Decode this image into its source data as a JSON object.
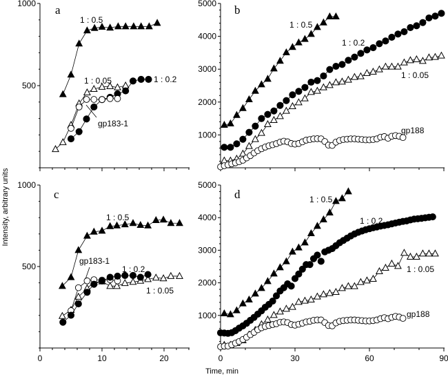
{
  "chart_data": [
    {
      "panel": "a",
      "type": "line",
      "xlim": [
        0,
        24
      ],
      "ylim": [
        0,
        1000
      ],
      "xticks": [
        0,
        10,
        20
      ],
      "show_xtick_labels": false,
      "yticks": [
        500,
        1000
      ],
      "ytick_labels": [
        "500",
        "1000"
      ],
      "series": [
        {
          "name": "1 : 0.5",
          "marker": "filled-triangle",
          "x": [
            3.7,
            5.0,
            6.3,
            7.6,
            8.8,
            10.0,
            11.3,
            12.6,
            13.8,
            15.1,
            16.3,
            17.6,
            18.9
          ],
          "y": [
            447,
            566,
            755,
            835,
            850,
            857,
            852,
            860,
            860,
            860,
            860,
            860,
            881
          ]
        },
        {
          "name": "1 : 0.05",
          "marker": "open-triangle",
          "x": [
            2.5,
            3.7,
            5.0,
            6.3,
            7.6,
            8.7,
            10.0,
            11.3,
            12.5,
            13.8
          ],
          "y": [
            113,
            155,
            260,
            391,
            458,
            479,
            492,
            496,
            489,
            500
          ]
        },
        {
          "name": "1 : 0.2",
          "marker": "filled-circle",
          "x": [
            5.0,
            6.3,
            7.5,
            8.7,
            10.0,
            11.3,
            12.5,
            13.8,
            15.0,
            16.3,
            17.5
          ],
          "y": [
            176,
            220,
            297,
            370,
            415,
            429,
            450,
            468,
            528,
            538,
            538
          ]
        },
        {
          "name": "gp183-1",
          "marker": "open-circle",
          "x": [
            5.0,
            6.3,
            7.5,
            8.7,
            10.0,
            11.3,
            12.5
          ],
          "y": [
            240,
            370,
            416,
            416,
            415,
            421,
            421
          ]
        }
      ]
    },
    {
      "panel": "b",
      "type": "line",
      "xlim": [
        0,
        90
      ],
      "ylim": [
        0,
        5000
      ],
      "xticks": [
        0,
        30,
        60,
        90
      ],
      "show_xtick_labels": false,
      "yticks": [
        1000,
        2000,
        3000,
        4000,
        5000
      ],
      "ytick_labels": [
        "1000",
        "2000",
        "3000",
        "4000",
        "5000"
      ],
      "series": [
        {
          "name": "1 : 0.5",
          "marker": "filled-triangle",
          "x": [
            1.5,
            4,
            6.5,
            9,
            11.5,
            14,
            16.5,
            19,
            21.5,
            24,
            26.5,
            29,
            31.5,
            34,
            36.5,
            39,
            41.5,
            44,
            46.5
          ],
          "y": [
            1303,
            1345,
            1603,
            1813,
            2080,
            2338,
            2535,
            2703,
            3018,
            3250,
            3508,
            3670,
            3810,
            3915,
            4069,
            4279,
            4418,
            4600,
            4600
          ]
        },
        {
          "name": "1 : 0.2",
          "marker": "filled-circle",
          "x": [
            1.5,
            4,
            6.5,
            9,
            11.5,
            14,
            16.5,
            19,
            21.5,
            24,
            26.5,
            29,
            31.5,
            34,
            36.5,
            39,
            41.5,
            44,
            46.5,
            49,
            51.5,
            54,
            56.5,
            59,
            61.5,
            64,
            66.5,
            69,
            71.5,
            74,
            76.5,
            79,
            81.5,
            84,
            86.5,
            89
          ],
          "y": [
            623,
            623,
            728,
            868,
            1078,
            1268,
            1499,
            1625,
            1730,
            1898,
            2045,
            2220,
            2325,
            2444,
            2605,
            2654,
            2794,
            2990,
            3088,
            3144,
            3270,
            3368,
            3480,
            3585,
            3655,
            3775,
            3858,
            3971,
            4069,
            4139,
            4265,
            4321,
            4419,
            4559,
            4615,
            4699
          ]
        },
        {
          "name": "1 : 0.05",
          "marker": "open-triangle",
          "x": [
            1.5,
            4,
            6.5,
            9,
            11.5,
            14,
            16.5,
            19,
            21.5,
            24,
            26.5,
            29,
            31.5,
            34,
            36.5,
            39,
            41.5,
            44,
            46.5,
            49,
            51.5,
            54,
            56.5,
            59,
            61.5,
            64,
            66.5,
            69,
            71.5,
            74,
            76.5,
            79,
            81.5,
            84,
            86.5,
            89
          ],
          "y": [
            217,
            217,
            273,
            427,
            658,
            868,
            1057,
            1324,
            1450,
            1569,
            1730,
            1870,
            1989,
            2108,
            2304,
            2339,
            2444,
            2514,
            2598,
            2619,
            2675,
            2759,
            2780,
            2878,
            2920,
            2990,
            3074,
            3074,
            3074,
            3200,
            3270,
            3298,
            3249,
            3354,
            3368,
            3410
          ]
        },
        {
          "name": "gp188",
          "marker": "open-circle",
          "x": [
            0,
            1.5,
            3,
            4.5,
            6,
            7.5,
            9,
            10.5,
            12,
            13.5,
            15,
            16.5,
            18,
            19.5,
            21,
            22.5,
            24,
            25.5,
            27,
            28.5,
            30,
            31.5,
            33,
            34.5,
            36,
            37.5,
            39,
            40.5,
            42,
            43.5,
            45,
            46.5,
            48,
            49.5,
            51,
            52.5,
            54,
            55.5,
            57,
            58.5,
            60,
            61.5,
            63,
            64.5,
            66,
            67.5,
            69,
            70.5,
            72,
            73.5
          ],
          "y": [
            30,
            63,
            90,
            120,
            150,
            185,
            230,
            300,
            370,
            450,
            520,
            580,
            630,
            670,
            700,
            735,
            780,
            810,
            790,
            740,
            720,
            740,
            790,
            840,
            860,
            880,
            885,
            880,
            800,
            690,
            680,
            780,
            830,
            860,
            870,
            880,
            880,
            870,
            860,
            850,
            850,
            860,
            880,
            930,
            950,
            900,
            960,
            980,
            960,
            920
          ]
        }
      ]
    },
    {
      "panel": "c",
      "type": "line",
      "xlim": [
        0,
        24
      ],
      "ylim": [
        0,
        1000
      ],
      "xticks": [
        0,
        10,
        20
      ],
      "show_xtick_labels": true,
      "xtick_labels": [
        "0",
        "10",
        "20"
      ],
      "yticks": [
        500,
        1000
      ],
      "ytick_labels": [
        "500",
        "1000"
      ],
      "series": [
        {
          "name": "1 : 0.5",
          "marker": "filled-triangle",
          "x": [
            3.6,
            5.0,
            6.2,
            7.6,
            8.7,
            10.0,
            11.3,
            12.4,
            13.7,
            15.0,
            16.2,
            17.4,
            18.7,
            19.9,
            21.1,
            22.5
          ],
          "y": [
            380,
            434,
            600,
            688,
            713,
            719,
            747,
            751,
            758,
            766,
            754,
            751,
            784,
            787,
            766,
            766
          ]
        },
        {
          "name": "1 : 0.05",
          "marker": "open-triangle",
          "x": [
            3.6,
            5.0,
            6.2,
            7.6,
            8.7,
            10.0,
            11.3,
            12.4,
            13.7,
            15.0,
            16.2,
            17.4,
            18.7,
            19.9,
            21.1,
            22.5
          ],
          "y": [
            196,
            233,
            314,
            366,
            403,
            408,
            380,
            380,
            398,
            405,
            412,
            422,
            431,
            427,
            441,
            441
          ]
        },
        {
          "name": "gp183-1",
          "marker": "open-circle",
          "x": [
            5.0,
            6.2,
            7.6,
            8.7,
            10.0,
            11.3,
            12.5
          ],
          "y": [
            229,
            370,
            412,
            419,
            417,
            419,
            412
          ]
        },
        {
          "name": "1 : 0.2",
          "marker": "filled-circle",
          "x": [
            3.7,
            5.0,
            6.2,
            7.6,
            8.7,
            10.0,
            11.3,
            12.5,
            13.7,
            15.0,
            16.2,
            17.4
          ],
          "y": [
            158,
            201,
            271,
            342,
            391,
            412,
            434,
            441,
            445,
            445,
            434,
            451
          ]
        }
      ]
    },
    {
      "panel": "d",
      "type": "line",
      "xlim": [
        0,
        90
      ],
      "ylim": [
        0,
        5000
      ],
      "xticks": [
        0,
        30,
        60,
        90
      ],
      "show_xtick_labels": true,
      "xtick_labels": [
        "0",
        "30",
        "60",
        "90"
      ],
      "yticks": [
        1000,
        2000,
        3000,
        4000,
        5000
      ],
      "ytick_labels": [
        "1000",
        "2000",
        "3000",
        "4000",
        "5000"
      ],
      "series": [
        {
          "name": "1 : 0.5",
          "marker": "filled-triangle",
          "x": [
            1.5,
            4,
            6.5,
            9,
            11.5,
            14,
            16.5,
            19,
            21.5,
            24,
            26.5,
            29,
            31.5,
            34,
            36.5,
            39,
            41.5,
            44,
            46.5,
            49,
            51.5
          ],
          "y": [
            1059,
            1031,
            1151,
            1363,
            1483,
            1667,
            1836,
            2048,
            2281,
            2472,
            2655,
            2952,
            3079,
            3234,
            3517,
            3743,
            3941,
            4153,
            4506,
            4590,
            4802
          ]
        },
        {
          "name": "1 : 0.2",
          "marker": "filled-circle",
          "x": [
            0,
            1.5,
            3,
            4.5,
            6,
            7.5,
            9,
            10.5,
            12,
            13.5,
            15,
            16.5,
            18,
            19.5,
            21,
            22.5,
            24,
            25.5,
            27,
            28.5,
            30,
            31.5,
            33,
            34.5,
            36,
            37.5,
            39,
            40.5,
            42,
            43.5,
            45,
            46.5,
            48,
            49.5,
            51,
            52.5,
            54,
            55.5,
            57,
            58.5,
            60,
            61.5,
            63,
            64.5,
            66,
            67.5,
            69,
            70.5,
            72,
            73.5,
            75,
            76.5,
            78,
            79.5,
            81,
            82.5,
            84,
            85.5
          ],
          "y": [
            466,
            460,
            450,
            470,
            530,
            610,
            680,
            760,
            850,
            940,
            1040,
            1140,
            1250,
            1340,
            1440,
            1600,
            1750,
            1850,
            1970,
            1900,
            2130,
            2270,
            2420,
            2560,
            2560,
            2740,
            2850,
            2660,
            2950,
            3000,
            3050,
            3140,
            3230,
            3300,
            3370,
            3440,
            3500,
            3550,
            3590,
            3630,
            3660,
            3690,
            3715,
            3740,
            3760,
            3780,
            3810,
            3835,
            3860,
            3885,
            3900,
            3930,
            3955,
            3965,
            3980,
            3995,
            4010,
            4025
          ]
        },
        {
          "name": "1 : 0.05",
          "marker": "open-triangle",
          "x": [
            1.5,
            4,
            6.5,
            9,
            11.5,
            14,
            16.5,
            19,
            21.5,
            24,
            26.5,
            29,
            31.5,
            34,
            36.5,
            39,
            41.5,
            44,
            46.5,
            49,
            51.5,
            54,
            56.5,
            59,
            61.5,
            64,
            66.5,
            69,
            71.5,
            74,
            76.5,
            79,
            81.5,
            84,
            86.5
          ],
          "y": [
            92,
            92,
            148,
            233,
            410,
            551,
            727,
            869,
            1010,
            1116,
            1201,
            1257,
            1412,
            1448,
            1483,
            1575,
            1645,
            1681,
            1716,
            1836,
            1893,
            1893,
            2020,
            2069,
            2119,
            2352,
            2458,
            2585,
            2514,
            2917,
            2797,
            2797,
            2895,
            2895,
            2895
          ]
        },
        {
          "name": "gp188",
          "marker": "open-circle",
          "x": [
            0,
            1.5,
            3,
            4.5,
            6,
            7.5,
            9,
            10.5,
            12,
            13.5,
            15,
            16.5,
            18,
            19.5,
            21,
            22.5,
            24,
            25.5,
            27,
            28.5,
            30,
            31.5,
            33,
            34.5,
            36,
            37.5,
            39,
            40.5,
            42,
            43.5,
            45,
            46.5,
            48,
            49.5,
            51,
            52.5,
            54,
            55.5,
            57,
            58.5,
            60,
            61.5,
            63,
            64.5,
            66,
            67.5,
            69,
            70.5,
            72,
            73.5
          ],
          "y": [
            40,
            56,
            60,
            100,
            150,
            200,
            260,
            330,
            410,
            480,
            560,
            620,
            660,
            690,
            720,
            745,
            790,
            800,
            780,
            720,
            700,
            730,
            760,
            800,
            820,
            850,
            860,
            860,
            780,
            690,
            680,
            770,
            820,
            840,
            850,
            860,
            860,
            850,
            840,
            830,
            830,
            840,
            860,
            900,
            930,
            900,
            940,
            970,
            950,
            910
          ]
        }
      ]
    }
  ],
  "axes": {
    "ylabel": "Intensity, arbitrary units",
    "xlabel": "Time, min"
  },
  "colors": {
    "ink": "#000000",
    "background": "#ffffff"
  }
}
